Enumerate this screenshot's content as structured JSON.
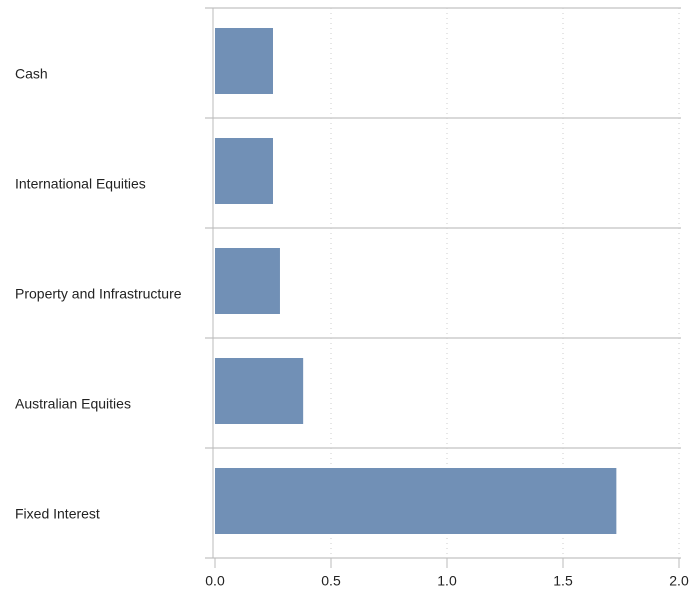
{
  "chart_data": {
    "type": "barh",
    "categories": [
      "Cash",
      "International Equities",
      "Property and Infrastructure",
      "Australian Equities",
      "Fixed Interest"
    ],
    "values": [
      0.25,
      0.25,
      0.28,
      0.38,
      1.73
    ],
    "color": "#7190b6",
    "xlim": [
      0,
      2
    ],
    "xticks": [
      {
        "value": 0,
        "label": "0.0"
      },
      {
        "value": 0.5,
        "label": "0.5"
      },
      {
        "value": 1,
        "label": "1.0"
      },
      {
        "value": 1.5,
        "label": "1.5"
      },
      {
        "value": 2,
        "label": "2.0"
      }
    ],
    "grid": true
  }
}
